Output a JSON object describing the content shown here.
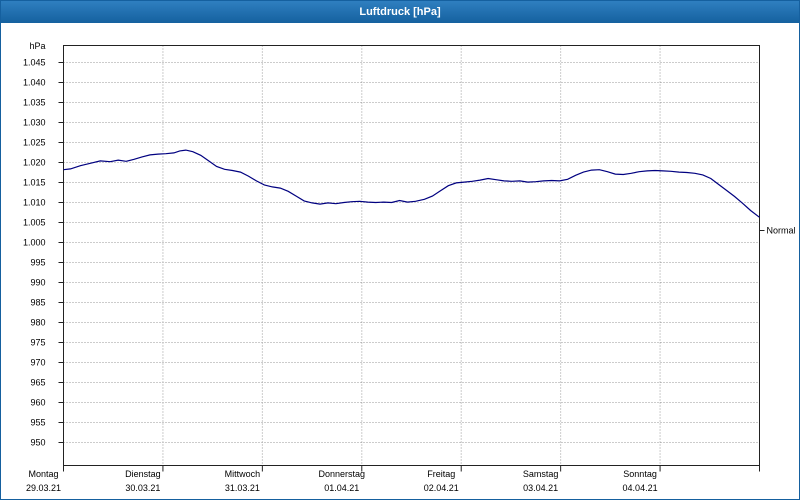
{
  "window": {
    "title": "Luftdruck [hPa]"
  },
  "chart_data": {
    "type": "line",
    "title": "Luftdruck [hPa]",
    "xlabel": "",
    "ylabel": "hPa",
    "unit": "hPa",
    "grid": true,
    "legend_position": "none",
    "ylim": [
      944.25,
      1049.25
    ],
    "y_tick_values": [
      1045,
      1040,
      1035,
      1030,
      1025,
      1020,
      1015,
      1010,
      1005,
      1000,
      995,
      990,
      985,
      980,
      975,
      970,
      965,
      960,
      955,
      950
    ],
    "y_tick_labels": [
      "1.045",
      "1.040",
      "1.035",
      "1.030",
      "1.025",
      "1.020",
      "1.015",
      "1.010",
      "1.005",
      "1.000",
      "995",
      "990",
      "985",
      "980",
      "975",
      "970",
      "965",
      "960",
      "955",
      "950"
    ],
    "x_ticks": [
      {
        "day": "Montag",
        "date": "29.03.21"
      },
      {
        "day": "Dienstag",
        "date": "30.03.21"
      },
      {
        "day": "Mittwoch",
        "date": "31.03.21"
      },
      {
        "day": "Donnerstag",
        "date": "01.04.21"
      },
      {
        "day": "Freitag",
        "date": "02.04.21"
      },
      {
        "day": "Samstag",
        "date": "03.04.21"
      },
      {
        "day": "Sonntag",
        "date": "04.04.21"
      }
    ],
    "normal_marker": {
      "label": "Normal",
      "value": 1003
    },
    "series": [
      {
        "name": "Luftdruck",
        "color": "#000080",
        "points": [
          [
            0.0,
            1018.2
          ],
          [
            0.07,
            1018.4
          ],
          [
            0.17,
            1019.2
          ],
          [
            0.27,
            1019.8
          ],
          [
            0.37,
            1020.4
          ],
          [
            0.47,
            1020.2
          ],
          [
            0.55,
            1020.6
          ],
          [
            0.63,
            1020.3
          ],
          [
            0.71,
            1020.8
          ],
          [
            0.79,
            1021.4
          ],
          [
            0.87,
            1021.9
          ],
          [
            0.95,
            1022.1
          ],
          [
            1.03,
            1022.2
          ],
          [
            1.11,
            1022.4
          ],
          [
            1.17,
            1022.9
          ],
          [
            1.23,
            1023.1
          ],
          [
            1.3,
            1022.7
          ],
          [
            1.38,
            1021.8
          ],
          [
            1.46,
            1020.4
          ],
          [
            1.54,
            1019.0
          ],
          [
            1.62,
            1018.3
          ],
          [
            1.7,
            1018.0
          ],
          [
            1.78,
            1017.6
          ],
          [
            1.86,
            1016.6
          ],
          [
            1.94,
            1015.4
          ],
          [
            2.02,
            1014.4
          ],
          [
            2.1,
            1013.9
          ],
          [
            2.18,
            1013.6
          ],
          [
            2.26,
            1012.8
          ],
          [
            2.34,
            1011.6
          ],
          [
            2.42,
            1010.4
          ],
          [
            2.5,
            1009.9
          ],
          [
            2.58,
            1009.6
          ],
          [
            2.66,
            1009.9
          ],
          [
            2.74,
            1009.7
          ],
          [
            2.82,
            1010.0
          ],
          [
            2.9,
            1010.2
          ],
          [
            2.98,
            1010.3
          ],
          [
            3.06,
            1010.1
          ],
          [
            3.14,
            1010.0
          ],
          [
            3.22,
            1010.1
          ],
          [
            3.3,
            1010.0
          ],
          [
            3.38,
            1010.5
          ],
          [
            3.46,
            1010.1
          ],
          [
            3.54,
            1010.3
          ],
          [
            3.63,
            1010.8
          ],
          [
            3.71,
            1011.6
          ],
          [
            3.79,
            1012.9
          ],
          [
            3.87,
            1014.2
          ],
          [
            3.95,
            1014.9
          ],
          [
            4.03,
            1015.1
          ],
          [
            4.11,
            1015.3
          ],
          [
            4.19,
            1015.6
          ],
          [
            4.27,
            1016.0
          ],
          [
            4.35,
            1015.7
          ],
          [
            4.43,
            1015.4
          ],
          [
            4.51,
            1015.3
          ],
          [
            4.59,
            1015.4
          ],
          [
            4.67,
            1015.1
          ],
          [
            4.75,
            1015.2
          ],
          [
            4.83,
            1015.4
          ],
          [
            4.91,
            1015.5
          ],
          [
            4.99,
            1015.4
          ],
          [
            5.07,
            1015.8
          ],
          [
            5.15,
            1016.8
          ],
          [
            5.23,
            1017.6
          ],
          [
            5.31,
            1018.1
          ],
          [
            5.39,
            1018.2
          ],
          [
            5.47,
            1017.7
          ],
          [
            5.55,
            1017.1
          ],
          [
            5.63,
            1017.0
          ],
          [
            5.71,
            1017.3
          ],
          [
            5.79,
            1017.7
          ],
          [
            5.87,
            1017.9
          ],
          [
            5.95,
            1018.0
          ],
          [
            6.03,
            1017.9
          ],
          [
            6.11,
            1017.8
          ],
          [
            6.19,
            1017.6
          ],
          [
            6.27,
            1017.5
          ],
          [
            6.35,
            1017.3
          ],
          [
            6.43,
            1016.9
          ],
          [
            6.51,
            1016.0
          ],
          [
            6.59,
            1014.5
          ],
          [
            6.67,
            1013.0
          ],
          [
            6.75,
            1011.5
          ],
          [
            6.83,
            1009.8
          ],
          [
            6.91,
            1008.0
          ],
          [
            7.0,
            1006.3
          ]
        ]
      }
    ]
  }
}
